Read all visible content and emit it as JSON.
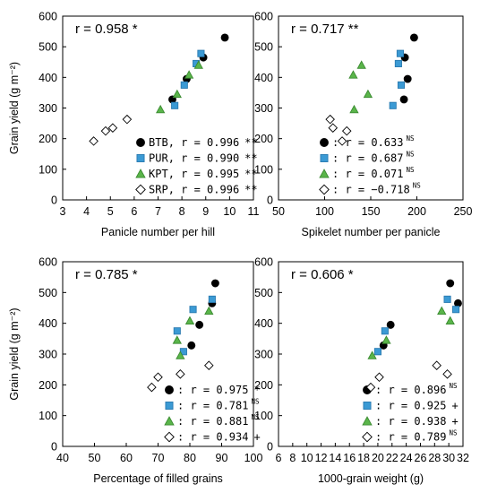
{
  "styles": {
    "BTB": {
      "marker": "circle",
      "fill": "#000000",
      "stroke": "#000000"
    },
    "PUR": {
      "marker": "square",
      "fill": "#3b9ad4",
      "stroke": "#2a7ab0"
    },
    "KPT": {
      "marker": "triangle",
      "fill": "#5ab54a",
      "stroke": "#3a8a30"
    },
    "SRP": {
      "marker": "diamond",
      "fill": "#ffffff",
      "stroke": "#000000"
    }
  },
  "chart_data": [
    {
      "type": "scatter",
      "xlabel": "Panicle number per hill",
      "ylabel": "Grain yield (g m⁻²)",
      "xlim": [
        3,
        11
      ],
      "xticks": [
        3,
        4,
        5,
        6,
        7,
        8,
        9,
        10,
        11
      ],
      "ylim": [
        0,
        600
      ],
      "yticks": [
        0,
        100,
        200,
        300,
        400,
        500,
        600
      ],
      "overall_r": "r = 0.958 *",
      "series": [
        {
          "name": "BTB",
          "r": "r = 0.996",
          "sig": "**",
          "points": [
            [
              7.6,
              328
            ],
            [
              8.2,
              395
            ],
            [
              8.9,
              465
            ],
            [
              9.8,
              530
            ]
          ]
        },
        {
          "name": "PUR",
          "r": "r = 0.990",
          "sig": "**",
          "points": [
            [
              7.7,
              308
            ],
            [
              8.1,
              375
            ],
            [
              8.6,
              445
            ],
            [
              8.8,
              478
            ]
          ]
        },
        {
          "name": "KPT",
          "r": "r = 0.995",
          "sig": "**",
          "points": [
            [
              7.1,
              295
            ],
            [
              7.8,
              345
            ],
            [
              8.3,
              408
            ],
            [
              8.7,
              440
            ]
          ]
        },
        {
          "name": "SRP",
          "r": "r = 0.996",
          "sig": "**",
          "points": [
            [
              4.3,
              192
            ],
            [
              4.8,
              225
            ],
            [
              5.1,
              235
            ],
            [
              5.7,
              263
            ]
          ]
        }
      ]
    },
    {
      "type": "scatter",
      "xlabel": "Spikelet number per panicle",
      "ylabel": "",
      "xlim": [
        50,
        250
      ],
      "xticks": [
        50,
        100,
        150,
        200,
        250
      ],
      "ylim": [
        0,
        600
      ],
      "yticks": [
        0,
        100,
        200,
        300,
        400,
        500,
        600
      ],
      "overall_r": "r = 0.717 **",
      "series": [
        {
          "name": "BTB",
          "r": "r =  0.633",
          "sig": "NS",
          "points": [
            [
              186,
              328
            ],
            [
              190,
              395
            ],
            [
              187,
              465
            ],
            [
              197,
              530
            ]
          ]
        },
        {
          "name": "PUR",
          "r": "r =  0.687",
          "sig": "NS",
          "points": [
            [
              174,
              308
            ],
            [
              183,
              375
            ],
            [
              180,
              445
            ],
            [
              182,
              478
            ]
          ]
        },
        {
          "name": "KPT",
          "r": "r =  0.071",
          "sig": "NS",
          "points": [
            [
              132,
              295
            ],
            [
              147,
              345
            ],
            [
              131,
              408
            ],
            [
              140,
              440
            ]
          ]
        },
        {
          "name": "SRP",
          "r": "r = −0.718",
          "sig": "NS",
          "points": [
            [
              119,
              192
            ],
            [
              109,
              235
            ],
            [
              106,
              263
            ],
            [
              124,
              225
            ]
          ]
        }
      ]
    },
    {
      "type": "scatter",
      "xlabel": "Percentage of filled grains",
      "ylabel": "Grain yield (g m⁻²)",
      "xlim": [
        40,
        100
      ],
      "xticks": [
        40,
        50,
        60,
        70,
        80,
        90,
        100
      ],
      "ylim": [
        0,
        600
      ],
      "yticks": [
        0,
        100,
        200,
        300,
        400,
        500,
        600
      ],
      "overall_r": "r = 0.785 *",
      "series": [
        {
          "name": "BTB",
          "r": "r = 0.975",
          "sig": "*",
          "points": [
            [
              80.5,
              328
            ],
            [
              83,
              395
            ],
            [
              87,
              465
            ],
            [
              88,
              530
            ]
          ]
        },
        {
          "name": "PUR",
          "r": "r = 0.781",
          "sig": "NS",
          "points": [
            [
              78,
              308
            ],
            [
              76,
              375
            ],
            [
              81,
              445
            ],
            [
              87,
              478
            ]
          ]
        },
        {
          "name": "KPT",
          "r": "r = 0.881",
          "sig": "NS",
          "points": [
            [
              77,
              295
            ],
            [
              76,
              345
            ],
            [
              80,
              408
            ],
            [
              86,
              440
            ]
          ]
        },
        {
          "name": "SRP",
          "r": "r = 0.934",
          "sig": "+",
          "points": [
            [
              68,
              192
            ],
            [
              70,
              225
            ],
            [
              77,
              235
            ],
            [
              86,
              263
            ]
          ]
        }
      ]
    },
    {
      "type": "scatter",
      "xlabel": "1000-grain weight (g)",
      "ylabel": "",
      "xlim": [
        6,
        32
      ],
      "xticks": [
        6,
        8,
        10,
        12,
        14,
        16,
        18,
        20,
        22,
        24,
        26,
        28,
        30,
        32
      ],
      "ylim": [
        0,
        600
      ],
      "yticks": [
        0,
        100,
        200,
        300,
        400,
        500,
        600
      ],
      "overall_r": "r = 0.606 *",
      "series": [
        {
          "name": "BTB",
          "r": "r = 0.896",
          "sig": "NS",
          "points": [
            [
              20.8,
              328
            ],
            [
              21.8,
              395
            ],
            [
              31.3,
              465
            ],
            [
              30.2,
              530
            ]
          ]
        },
        {
          "name": "PUR",
          "r": "r = 0.925",
          "sig": "+",
          "points": [
            [
              20,
              308
            ],
            [
              21,
              375
            ],
            [
              31,
              445
            ],
            [
              29.8,
              478
            ]
          ]
        },
        {
          "name": "KPT",
          "r": "r = 0.938",
          "sig": "+",
          "points": [
            [
              19.2,
              295
            ],
            [
              21.2,
              345
            ],
            [
              30.2,
              408
            ],
            [
              29,
              440
            ]
          ]
        },
        {
          "name": "SRP",
          "r": "r = 0.789",
          "sig": "NS",
          "points": [
            [
              19,
              192
            ],
            [
              20.2,
              225
            ],
            [
              29.8,
              235
            ],
            [
              28.3,
              263
            ]
          ]
        }
      ]
    }
  ]
}
